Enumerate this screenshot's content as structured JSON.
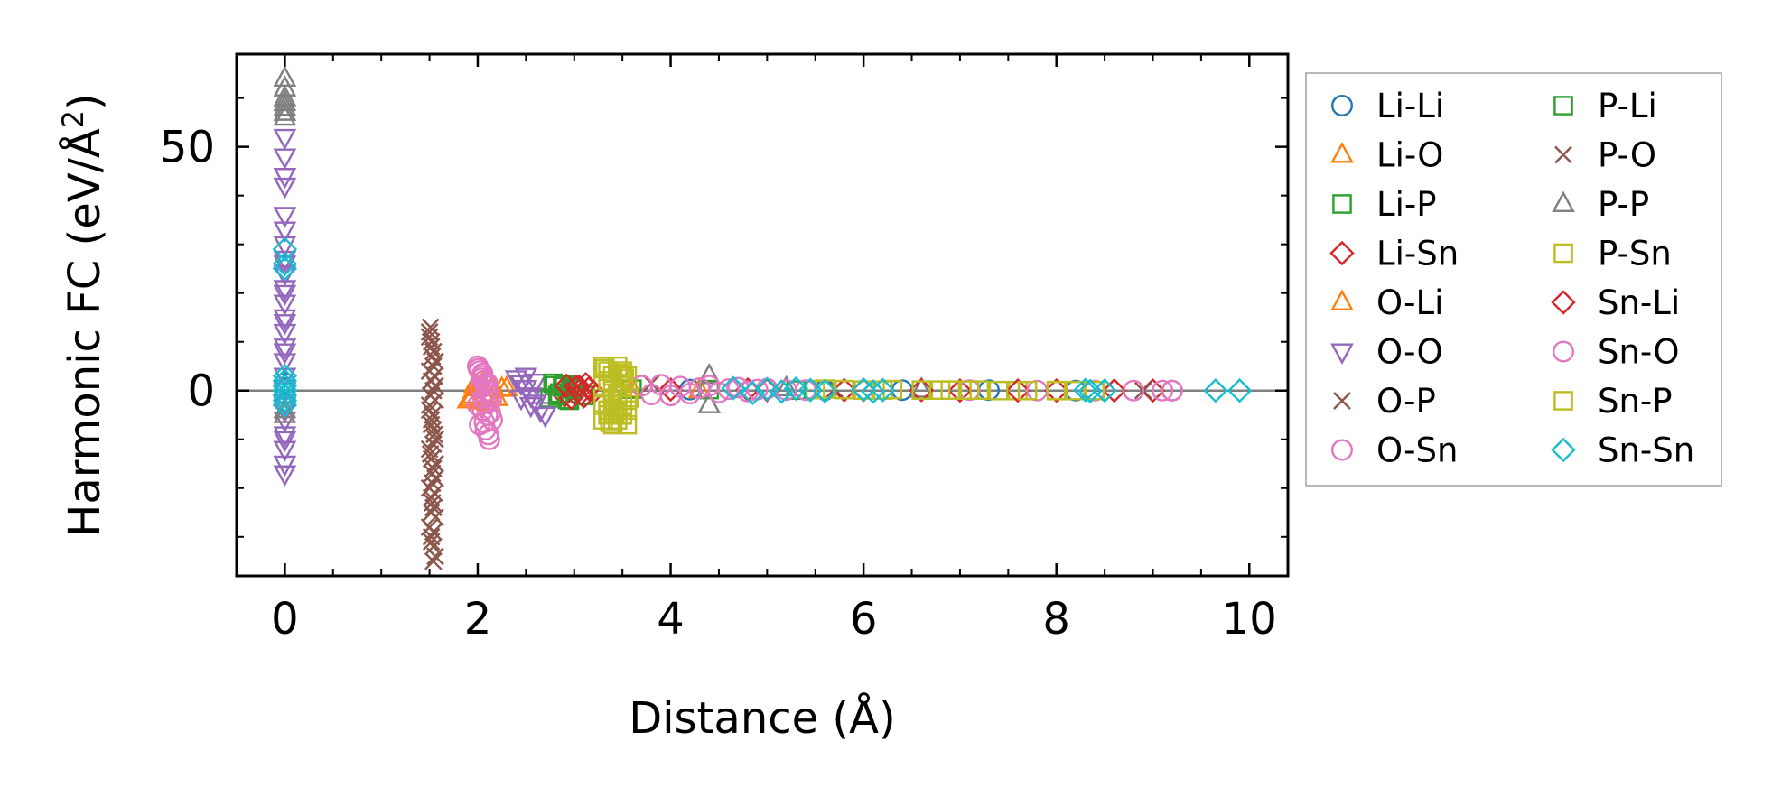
{
  "chart_data": {
    "type": "scatter",
    "xlabel": "Distance (Å)",
    "ylabel_prefix": "Harmonic FC (eV/Å",
    "ylabel_sup": "2",
    "ylabel_suffix": ")",
    "xlim": [
      -0.5,
      10.4
    ],
    "ylim": [
      -38,
      69
    ],
    "xticks": [
      0,
      2,
      4,
      6,
      8,
      10
    ],
    "xtick_labels": [
      "0",
      "2",
      "4",
      "6",
      "8",
      "10"
    ],
    "yticks": [
      0,
      50
    ],
    "ytick_labels": [
      "0",
      "50"
    ],
    "x_minor_step": 0.5,
    "y_minor_step": 10,
    "zero_line": true,
    "grid": false,
    "legend_placement": "outside right, 2 columns",
    "series": [
      {
        "name": "Li-Li",
        "marker": "circle",
        "color": "#1f77b4",
        "x": [
          0,
          0,
          0,
          3.0,
          4.2,
          5.6,
          6.4,
          7.3,
          8.2,
          9.2
        ],
        "y": [
          0.5,
          1.5,
          -0.5,
          0.3,
          0.2,
          0.1,
          0.1,
          0.1,
          0.0,
          0.0
        ]
      },
      {
        "name": "Li-O",
        "marker": "triangle-up",
        "color": "#ff7f0e",
        "x": [
          1.9,
          1.95,
          2.0,
          2.05,
          2.1,
          2.15,
          2.2,
          2.3,
          3.6,
          4.3
        ],
        "y": [
          -2.0,
          -1.0,
          0.5,
          1.5,
          -2.5,
          1.0,
          -1.5,
          0.5,
          0.2,
          0.1
        ]
      },
      {
        "name": "Li-P",
        "marker": "square",
        "color": "#2ca02c",
        "x": [
          2.75,
          2.8,
          2.85,
          2.9,
          2.95,
          3.0,
          3.1,
          3.6,
          4.4,
          5.3
        ],
        "y": [
          -1.5,
          1.0,
          -0.5,
          1.2,
          -2.0,
          0.5,
          -1.0,
          0.3,
          0.2,
          0.1
        ]
      },
      {
        "name": "Li-Sn",
        "marker": "diamond",
        "color": "#d62728",
        "x": [
          2.9,
          2.95,
          3.0,
          3.05,
          3.1,
          3.15,
          3.2,
          4.0,
          5.0,
          6.0,
          7.0,
          8.0,
          9.0
        ],
        "y": [
          -1.0,
          0.5,
          -0.5,
          0.8,
          -1.2,
          0.4,
          -0.3,
          0.2,
          0.1,
          0.1,
          0.0,
          0.0,
          0.0
        ]
      },
      {
        "name": "O-Li",
        "marker": "triangle-up",
        "color": "#ff7f0e",
        "x": [
          1.92,
          1.97,
          2.02,
          2.07,
          2.12,
          2.25
        ],
        "y": [
          -1.5,
          1.2,
          -2.2,
          0.8,
          -0.8,
          0.4
        ]
      },
      {
        "name": "O-O",
        "marker": "triangle-down",
        "color": "#9467bd",
        "x": [
          0,
          0,
          0,
          0,
          0,
          0,
          0,
          0,
          0,
          0,
          0,
          0,
          0,
          0,
          0,
          0,
          0,
          0,
          0,
          0,
          0,
          0,
          0,
          0,
          0,
          0,
          0,
          0,
          0,
          2.4,
          2.45,
          2.5,
          2.55,
          2.6,
          2.65,
          2.7,
          2.5,
          2.55,
          2.45,
          2.6
        ],
        "y": [
          52,
          48,
          44,
          42,
          36,
          33,
          30,
          27,
          24,
          21,
          18,
          15,
          12,
          9,
          6,
          3,
          0,
          -3,
          -6,
          -9,
          -12,
          -15,
          -17,
          20,
          14,
          8,
          -4,
          -10,
          26,
          2.5,
          1.5,
          0.5,
          -1.0,
          -2.5,
          -4.0,
          -5.0,
          3.0,
          -3.0,
          -1.5,
          1.8
        ]
      },
      {
        "name": "O-P",
        "marker": "x",
        "color": "#8c564b",
        "x": [
          1.5,
          1.52,
          1.54,
          1.56,
          1.5,
          1.52,
          1.54,
          1.56,
          1.5,
          1.52,
          1.54,
          1.56,
          1.5,
          1.52,
          1.54,
          1.56,
          1.5,
          1.52,
          1.54,
          1.56,
          1.5,
          1.52,
          1.54,
          1.56,
          1.5,
          1.52,
          1.54,
          1.56,
          1.5,
          1.52,
          1.54,
          1.56,
          1.53,
          1.53,
          3.8,
          5.7,
          8.9
        ],
        "y": [
          12,
          10,
          8,
          6,
          4,
          2,
          0,
          -2,
          -4,
          -6,
          -8,
          -10,
          -12,
          -14,
          -16,
          -18,
          -20,
          -22,
          -24,
          -26,
          -28,
          -30,
          -32,
          -34,
          11,
          9,
          5,
          1,
          -3,
          -7,
          -11,
          -15,
          -19,
          -23,
          1.5,
          0.3,
          0.0
        ]
      },
      {
        "name": "O-Sn",
        "marker": "circle",
        "color": "#e377c2",
        "x": [
          2.0,
          2.02,
          2.04,
          2.06,
          2.08,
          2.1,
          2.12,
          2.14,
          2.0,
          2.05,
          2.1,
          2.15,
          2.02,
          2.08,
          2.12,
          2.04,
          2.06,
          2.1
        ],
        "y": [
          5.0,
          4.0,
          3.0,
          2.0,
          1.0,
          0.0,
          -1.0,
          -2.0,
          -3.0,
          -4.0,
          -5.0,
          -6.0,
          -7.0,
          -8.0,
          -10.0,
          2.5,
          -1.5,
          1.5
        ]
      },
      {
        "name": "P-Li",
        "marker": "square",
        "color": "#2ca02c",
        "x": [
          2.78,
          2.83,
          2.88,
          2.93,
          2.98
        ],
        "y": [
          1.5,
          -1.0,
          0.8,
          -1.8,
          0.3
        ]
      },
      {
        "name": "P-O",
        "marker": "x",
        "color": "#8c564b",
        "x": [
          1.51,
          1.53,
          1.55,
          1.51,
          1.53,
          1.55,
          1.51,
          1.53,
          1.55,
          1.52,
          1.54,
          1.52,
          1.54
        ],
        "y": [
          13,
          7,
          3,
          -1,
          -5,
          -9,
          -13,
          -17,
          -21,
          -25,
          -29,
          -31,
          -35
        ]
      },
      {
        "name": "P-P",
        "marker": "triangle-up",
        "color": "#7f7f7f",
        "x": [
          0,
          0,
          0,
          0,
          0,
          0,
          0,
          0,
          0,
          4.4,
          4.4,
          5.2,
          6.6
        ],
        "y": [
          64,
          62,
          60,
          59,
          58,
          57,
          56,
          -4,
          -5,
          3.0,
          -3.0,
          0.5,
          0.2
        ]
      },
      {
        "name": "P-Sn",
        "marker": "square",
        "color": "#bcbd22",
        "x": [
          3.3,
          3.35,
          3.4,
          3.45,
          3.5,
          3.55,
          3.3,
          3.35,
          3.4,
          3.45,
          3.5,
          3.55,
          3.3,
          3.35,
          3.4,
          3.45,
          3.5,
          3.55,
          3.3,
          3.35,
          3.4,
          3.45,
          3.5,
          3.55,
          5.5,
          6.2,
          6.8,
          7.2,
          7.6,
          8.0
        ],
        "y": [
          5,
          4,
          3,
          5,
          4,
          3,
          1,
          2,
          0,
          -1,
          1,
          -2,
          -3,
          -4,
          -2,
          -5,
          -3,
          -4,
          -6,
          -5,
          -7,
          -6,
          -5,
          -7,
          0.2,
          0.1,
          0.1,
          0.1,
          0.0,
          0.0
        ]
      },
      {
        "name": "Sn-Li",
        "marker": "diamond",
        "color": "#d62728",
        "x": [
          2.92,
          2.97,
          3.02,
          3.07,
          3.12,
          4.8,
          5.8,
          6.6,
          7.6,
          8.6
        ],
        "y": [
          1.0,
          -1.5,
          0.8,
          -0.6,
          1.3,
          0.2,
          0.1,
          0.1,
          0.0,
          0.0
        ]
      },
      {
        "name": "Sn-O",
        "marker": "circle",
        "color": "#e377c2",
        "x": [
          2.01,
          2.05,
          2.09,
          2.13,
          2.03,
          2.07,
          2.11,
          3.7,
          3.8,
          3.9,
          4.0,
          4.1,
          4.2,
          4.3,
          4.4,
          4.5,
          4.6,
          4.7,
          4.8,
          4.9,
          5.0,
          5.2,
          5.4,
          7.1,
          7.8,
          8.4,
          8.8,
          9.1,
          9.2
        ],
        "y": [
          4.5,
          3.5,
          -2.5,
          -4.5,
          0.5,
          -6.5,
          -9.0,
          1.0,
          -0.8,
          1.2,
          -1.0,
          0.8,
          -0.6,
          0.5,
          1.0,
          -0.4,
          0.3,
          0.6,
          -0.2,
          0.2,
          0.4,
          0.1,
          0.1,
          0.1,
          0.0,
          0.0,
          0.0,
          0.0,
          0.0
        ]
      },
      {
        "name": "Sn-P",
        "marker": "square",
        "color": "#bcbd22",
        "x": [
          3.32,
          3.42,
          3.52,
          3.37,
          3.47,
          3.57,
          5.6,
          5.8,
          6.0,
          6.3,
          6.6,
          6.9,
          7.1,
          7.4,
          7.7,
          8.0,
          8.2,
          8.4
        ],
        "y": [
          4.5,
          -4.5,
          2.5,
          -6.5,
          3.5,
          -1.5,
          0.3,
          0.2,
          0.1,
          0.2,
          0.1,
          0.1,
          0.1,
          0.0,
          0.0,
          0.0,
          0.0,
          0.0
        ]
      },
      {
        "name": "Sn-Sn",
        "marker": "diamond",
        "color": "#17becf",
        "x": [
          0,
          0,
          0,
          0,
          0,
          0,
          0,
          0,
          0,
          0,
          4.65,
          4.85,
          5.0,
          5.15,
          5.3,
          5.45,
          5.6,
          6.0,
          6.1,
          6.2,
          8.3,
          8.35,
          8.5,
          9.65,
          9.9
        ],
        "y": [
          29,
          26,
          25,
          3,
          2,
          1,
          0,
          -1,
          -2,
          -3,
          0.5,
          -0.5,
          0.3,
          -0.2,
          0.4,
          0.1,
          -0.1,
          0.2,
          -0.2,
          0.1,
          0.1,
          -0.1,
          0.0,
          0.0,
          0.0
        ]
      }
    ]
  }
}
